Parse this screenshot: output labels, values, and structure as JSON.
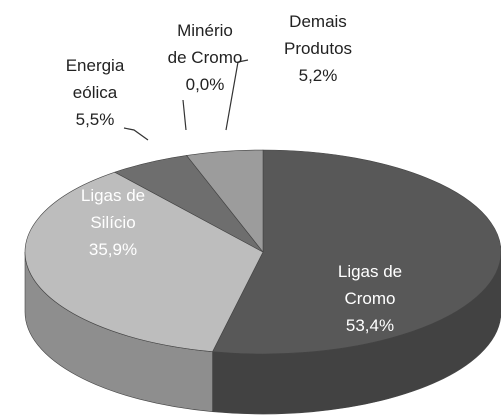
{
  "chart_data": {
    "type": "pie",
    "categories": [
      "Ligas de\nCromo",
      "Ligas de\nSilício",
      "Energia\neólica",
      "Minério\nde Cromo",
      "Demais\nProdutos"
    ],
    "values": [
      53.4,
      35.9,
      5.5,
      0.0,
      5.2
    ],
    "value_labels": [
      "53,4%",
      "35,9%",
      "5,5%",
      "0,0%",
      "5,2%"
    ],
    "colors": [
      "#585858",
      "#bdbdbd",
      "#6e6e6e",
      "#8a8a8a",
      "#9c9c9c"
    ]
  }
}
